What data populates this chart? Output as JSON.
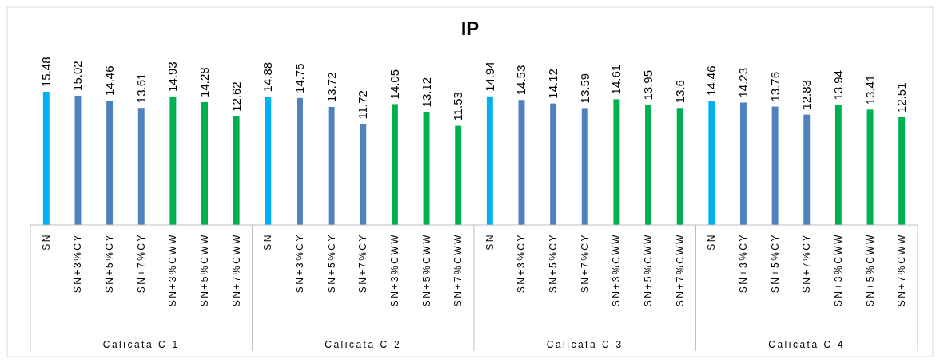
{
  "chart_data": {
    "type": "bar",
    "title": "IP",
    "categories": [
      "SN",
      "SN+3%CY",
      "SN+5%CY",
      "SN+7%CY",
      "SN+3%CWW",
      "SN+5%CWW",
      "SN+7%CWW",
      "SN",
      "SN+3%CY",
      "SN+5%CY",
      "SN+7%CY",
      "SN+3%CWW",
      "SN+5%CWW",
      "SN+7%CWW",
      "SN",
      "SN+3%CY",
      "SN+5%CY",
      "SN+7%CY",
      "SN+3%CWW",
      "SN+5%CWW",
      "SN+7%CWW",
      "SN",
      "SN+3%CY",
      "SN+5%CY",
      "SN+7%CY",
      "SN+3%CWW",
      "SN+5%CWW",
      "SN+7%CWW"
    ],
    "values": [
      15.48,
      15.02,
      14.46,
      13.61,
      14.93,
      14.28,
      12.62,
      14.88,
      14.75,
      13.72,
      11.72,
      14.05,
      13.12,
      11.53,
      14.94,
      14.53,
      14.12,
      13.59,
      14.61,
      13.95,
      13.6,
      14.46,
      14.23,
      13.76,
      12.83,
      13.94,
      13.41,
      12.51
    ],
    "colors": [
      "#00b0f0",
      "#4f81bd",
      "#4f81bd",
      "#4f81bd",
      "#00b050",
      "#00b050",
      "#00b050",
      "#00b0f0",
      "#4f81bd",
      "#4f81bd",
      "#4f81bd",
      "#00b050",
      "#00b050",
      "#00b050",
      "#00b0f0",
      "#4f81bd",
      "#4f81bd",
      "#4f81bd",
      "#00b050",
      "#00b050",
      "#00b050",
      "#00b0f0",
      "#4f81bd",
      "#4f81bd",
      "#4f81bd",
      "#00b050",
      "#00b050",
      "#00b050"
    ],
    "annotations": [
      "Calicata C-1",
      "Calicata C-2",
      "Calicata C-3",
      "Calicata C-4"
    ],
    "data_labels": true,
    "tick_labels": "x"
  }
}
